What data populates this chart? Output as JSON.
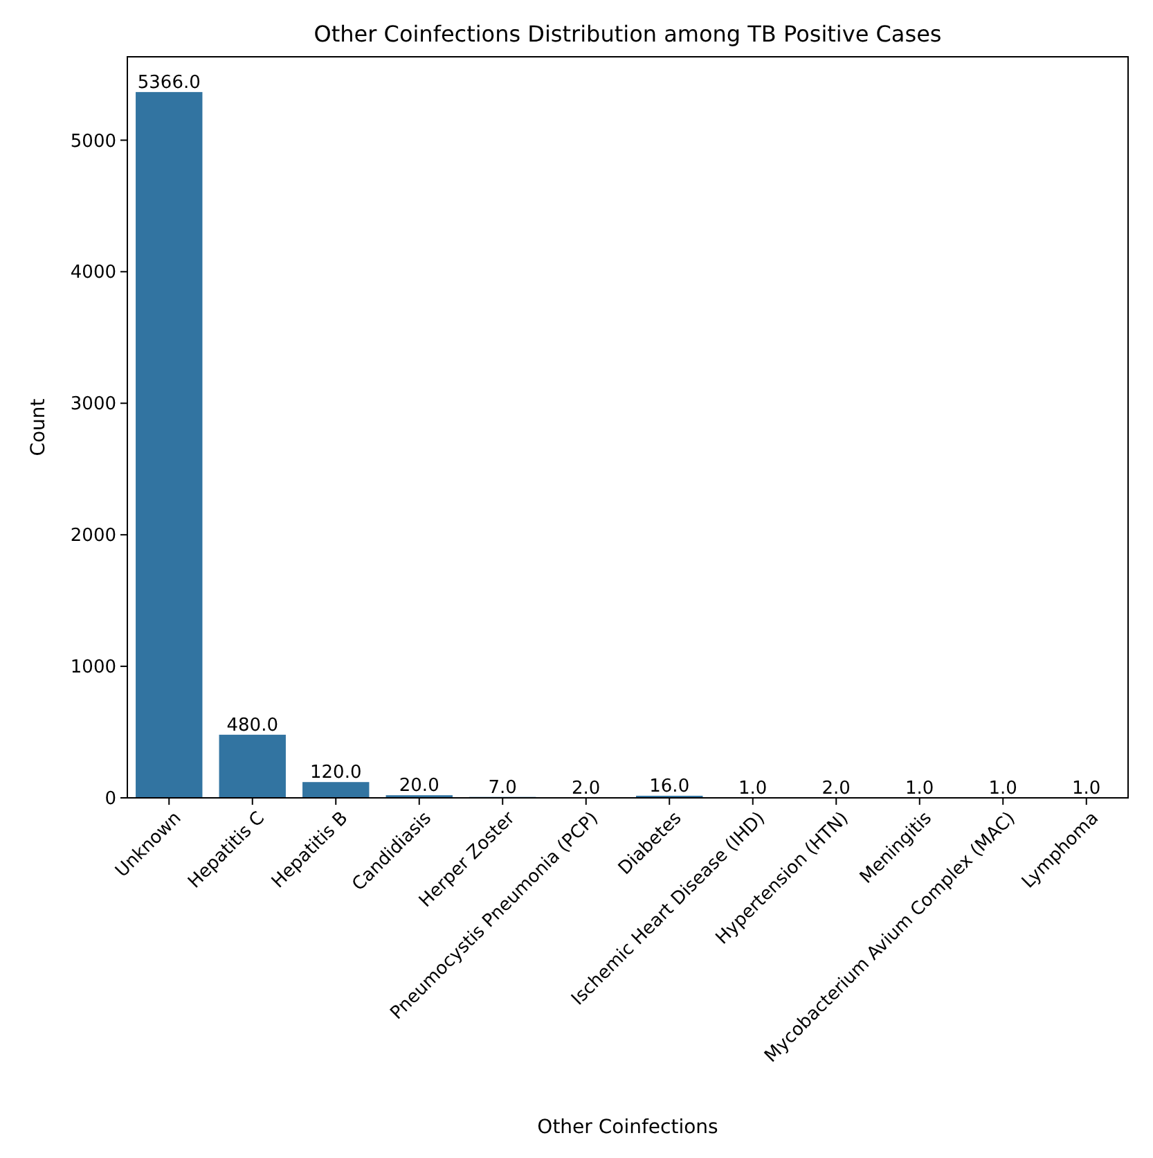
{
  "chart_data": {
    "type": "bar",
    "title": "Other Coinfections Distribution among TB Positive Cases",
    "xlabel": "Other Coinfections",
    "ylabel": "Count",
    "categories": [
      "Unknown",
      "Hepatitis C",
      "Hepatitis B",
      "Candidiasis",
      "Herper Zoster",
      "Pneumocystis Pneumonia (PCP)",
      "Diabetes",
      "Ischemic Heart Disease (IHD)",
      "Hypertension (HTN)",
      "Meningitis",
      "Mycobacterium Avium Complex (MAC)",
      "Lymphoma"
    ],
    "values": [
      5366,
      480,
      120,
      20,
      7,
      2,
      16,
      1,
      2,
      1,
      1,
      1
    ],
    "value_labels": [
      "5366.0",
      "480.0",
      "120.0",
      "20.0",
      "7.0",
      "2.0",
      "16.0",
      "1.0",
      "2.0",
      "1.0",
      "1.0",
      "1.0"
    ],
    "color": "#3274a1",
    "ylim": [
      0,
      5634
    ],
    "yticks": [
      0,
      1000,
      2000,
      3000,
      4000,
      5000
    ],
    "grid": false
  }
}
